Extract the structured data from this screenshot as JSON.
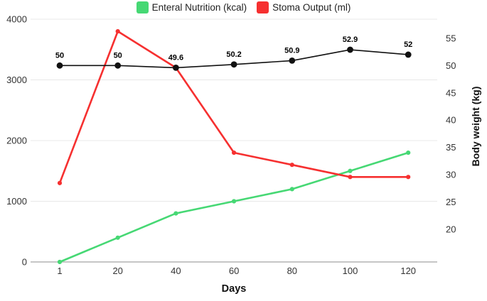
{
  "chart_data": {
    "type": "line",
    "x": [
      1,
      20,
      40,
      60,
      80,
      100,
      120
    ],
    "xlabel": "Days",
    "series": [
      {
        "name": "Enteral Nutrition (kcal)",
        "axis": "left",
        "color": "#46d874",
        "values": [
          0,
          400,
          800,
          1000,
          1200,
          1500,
          1800
        ],
        "in_legend": true
      },
      {
        "name": "Stoma Output (ml)",
        "axis": "left",
        "color": "#f63030",
        "values": [
          1300,
          3800,
          3200,
          1800,
          1600,
          1400,
          1400
        ],
        "in_legend": true
      },
      {
        "name": "Body weight (kg)",
        "axis": "right",
        "color": "#111111",
        "values": [
          50,
          50,
          49.6,
          50.2,
          50.9,
          52.9,
          52
        ],
        "labels": [
          "50",
          "50",
          "49.6",
          "50.2",
          "50.9",
          "52.9",
          "52"
        ],
        "in_legend": false
      }
    ],
    "left_axis": {
      "ticks": [
        0,
        1000,
        2000,
        3000,
        4000
      ],
      "range": [
        0,
        4000
      ]
    },
    "right_axis": {
      "label": "Body weight (kg)",
      "ticks": [
        20,
        25,
        30,
        35,
        40,
        45,
        50,
        55
      ],
      "range": [
        14,
        58.5
      ]
    },
    "grid": "horizontal",
    "legend_position": "top-center",
    "colors": {
      "gridline": "#e8e8e8",
      "baseline": "#c6c6c6",
      "tick_text": "#333333"
    }
  }
}
